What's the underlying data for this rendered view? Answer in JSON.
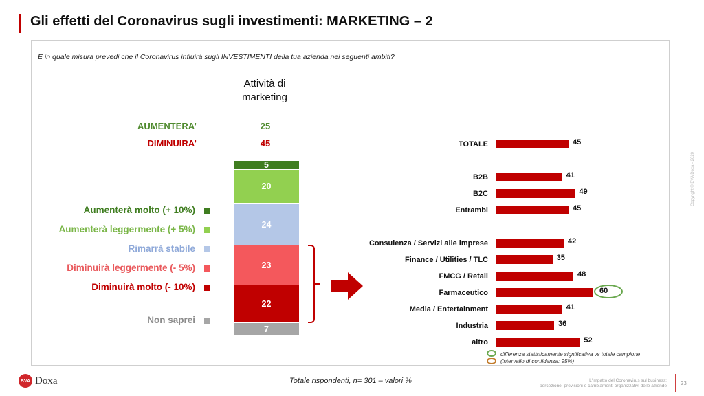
{
  "header": {
    "title": "Gli effetti del Coronavirus sugli investimenti: MARKETING – 2"
  },
  "question": "E in quale misura prevedi che il Coronavirus influirà sugli INVESTIMENTI della tua azienda nei seguenti ambiti?",
  "column_header": [
    "Attività di",
    "marketing"
  ],
  "summary": [
    {
      "label": "AUMENTERA’",
      "value": "25",
      "color": "#4f8a2e"
    },
    {
      "label": "DIMINUIRA’",
      "value": "45",
      "color": "#c00000"
    }
  ],
  "colors": {
    "accent": "#c00000",
    "significance_green": "#6aa84f",
    "significance_orange": "#c27c2c"
  },
  "chart_data": [
    {
      "type": "bar",
      "stacked": true,
      "categories": [
        "Attività di marketing"
      ],
      "series": [
        {
          "name": "Aumenterà molto (+ 10%)",
          "values": [
            5
          ],
          "color": "#3f7d20"
        },
        {
          "name": "Aumenterà leggermente (+ 5%)",
          "values": [
            20
          ],
          "color": "#92d050"
        },
        {
          "name": "Rimarrà stabile",
          "values": [
            24
          ],
          "color": "#b4c7e7"
        },
        {
          "name": "Diminuirà leggermente (- 5%)",
          "values": [
            23
          ],
          "color": "#f4585c"
        },
        {
          "name": "Diminuirà molto (- 10%)",
          "values": [
            22
          ],
          "color": "#c00000"
        },
        {
          "name": "Non saprei",
          "values": [
            7
          ],
          "color": "#a6a6a6"
        }
      ],
      "legend_text_colors": [
        "#3f7d20",
        "#7ab648",
        "#8fa9d9",
        "#e9595c",
        "#c00000",
        "#8c8c8c"
      ],
      "ylim": [
        0,
        100
      ]
    },
    {
      "type": "bar",
      "orientation": "horizontal",
      "categories": [
        "TOTALE",
        "B2B",
        "B2C",
        "Entrambi",
        "Consulenza / Servizi alle imprese",
        "Finance / Utilities / TLC",
        "FMCG / Retail",
        "Farmaceutico",
        "Media / Entertainment",
        "Industria",
        "altro"
      ],
      "values": [
        45,
        41,
        49,
        45,
        42,
        35,
        48,
        60,
        41,
        36,
        52
      ],
      "highlight": "Farmaceutico",
      "significance_legend": [
        "differenza statisticamente significativa vs totale campione",
        "(intervallo di confidenza: 95%)"
      ]
    }
  ],
  "footer": {
    "logo_badge": "BVA",
    "logo_text": "Doxa",
    "note": "Totale rispondenti, n= 301 – valori %",
    "right_text": [
      "L'impatto del Coronavirus sul business:",
      "percezione, previsioni e cambiamenti organizzativi delle aziende"
    ],
    "page": "23"
  },
  "copyright": "Copyright © BVA Doxa - 2020"
}
